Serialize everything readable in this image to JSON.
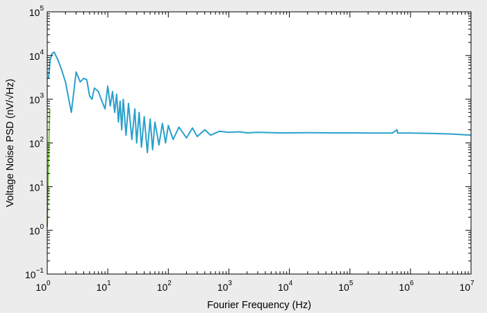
{
  "chart_data": {
    "type": "line",
    "title": "",
    "xlabel": "Fourier Frequency (Hz)",
    "ylabel": "Voltage Noise PSD (nV/√Hz)",
    "xscale": "log",
    "yscale": "log",
    "xlim": [
      1,
      10000000
    ],
    "ylim": [
      0.1,
      100000
    ],
    "grid": false,
    "x_tick_labels": [
      {
        "base": "10",
        "exp": "0"
      },
      {
        "base": "10",
        "exp": "1"
      },
      {
        "base": "10",
        "exp": "2"
      },
      {
        "base": "10",
        "exp": "3"
      },
      {
        "base": "10",
        "exp": "4"
      },
      {
        "base": "10",
        "exp": "5"
      },
      {
        "base": "10",
        "exp": "6"
      },
      {
        "base": "10",
        "exp": "7"
      }
    ],
    "y_tick_labels": [
      {
        "base": "10",
        "exp": "−1"
      },
      {
        "base": "10",
        "exp": "0"
      },
      {
        "base": "10",
        "exp": "1"
      },
      {
        "base": "10",
        "exp": "2"
      },
      {
        "base": "10",
        "exp": "3"
      },
      {
        "base": "10",
        "exp": "4"
      },
      {
        "base": "10",
        "exp": "5"
      }
    ],
    "series": [
      {
        "color": "#2aa0cc",
        "x": [
          1.05,
          1.12,
          1.2,
          1.3,
          1.5,
          1.7,
          2.0,
          2.5,
          3.0,
          3.5,
          4.0,
          4.5,
          5.0,
          5.5,
          6.0,
          7.0,
          8.0,
          9.0,
          10,
          11,
          12,
          13,
          14,
          15,
          16,
          17,
          18,
          20,
          22,
          25,
          28,
          30,
          33,
          36,
          40,
          45,
          50,
          55,
          60,
          70,
          80,
          90,
          100,
          120,
          150,
          200,
          250,
          300,
          400,
          500,
          700,
          1000,
          1500,
          2000,
          3000,
          5000,
          7000,
          10000,
          20000,
          50000,
          100000,
          200000,
          500000,
          600000,
          610000,
          620000,
          700000,
          1000000,
          2000000,
          5000000,
          10000000
        ],
        "y": [
          3000,
          8000,
          11000,
          12000,
          8000,
          5000,
          2500,
          500,
          4200,
          2500,
          3000,
          2800,
          1200,
          1000,
          1800,
          1500,
          900,
          600,
          2000,
          700,
          1500,
          500,
          1300,
          300,
          900,
          200,
          1000,
          150,
          800,
          120,
          600,
          100,
          500,
          80,
          400,
          60,
          350,
          70,
          300,
          90,
          280,
          100,
          250,
          120,
          230,
          130,
          220,
          140,
          200,
          150,
          185,
          175,
          180,
          170,
          175,
          172,
          170,
          170,
          172,
          170,
          170,
          168,
          168,
          200,
          170,
          168,
          168,
          168,
          165,
          160,
          150
        ]
      },
      {
        "color": "#7dc242",
        "x": [
          1.0,
          1.02,
          1.05,
          1.1
        ],
        "y": [
          1.2,
          5,
          40,
          600
        ]
      }
    ]
  }
}
